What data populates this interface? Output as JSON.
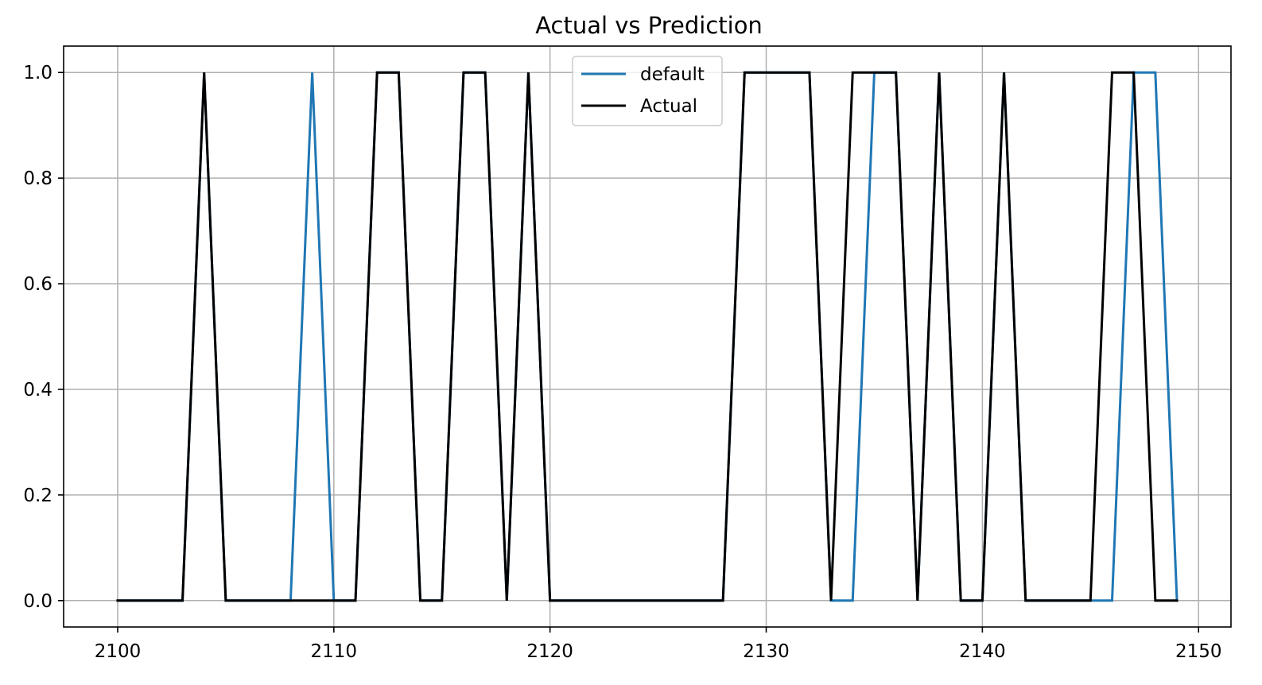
{
  "chart_data": {
    "type": "line",
    "title": "Actual vs Prediction",
    "xlabel": "",
    "ylabel": "",
    "xlim": [
      2097.5,
      2151.5
    ],
    "ylim": [
      -0.05,
      1.05
    ],
    "x_ticks": [
      2100,
      2110,
      2120,
      2130,
      2140,
      2150
    ],
    "x_tick_labels": [
      "2100",
      "2110",
      "2120",
      "2130",
      "2140",
      "2150"
    ],
    "y_ticks": [
      0.0,
      0.2,
      0.4,
      0.6,
      0.8,
      1.0
    ],
    "y_tick_labels": [
      "0.0",
      "0.2",
      "0.4",
      "0.6",
      "0.8",
      "1.0"
    ],
    "grid": true,
    "legend_position": "top-center",
    "x": [
      2100,
      2101,
      2102,
      2103,
      2104,
      2105,
      2106,
      2107,
      2108,
      2109,
      2110,
      2111,
      2112,
      2113,
      2114,
      2115,
      2116,
      2117,
      2118,
      2119,
      2120,
      2121,
      2122,
      2123,
      2124,
      2125,
      2126,
      2127,
      2128,
      2129,
      2130,
      2131,
      2132,
      2133,
      2134,
      2135,
      2136,
      2137,
      2138,
      2139,
      2140,
      2141,
      2142,
      2143,
      2144,
      2145,
      2146,
      2147,
      2148,
      2149
    ],
    "series": [
      {
        "name": "default",
        "color": "#1f77b4",
        "values": [
          0,
          0,
          0,
          0,
          1,
          0,
          0,
          0,
          0,
          1,
          0,
          0,
          1,
          1,
          0,
          0,
          1,
          1,
          0,
          1,
          0,
          0,
          0,
          0,
          0,
          0,
          0,
          0,
          0,
          1,
          1,
          1,
          1,
          0,
          0,
          1,
          1,
          0,
          1,
          0,
          0,
          1,
          0,
          0,
          0,
          0,
          0,
          1,
          1,
          0
        ]
      },
      {
        "name": "Actual",
        "color": "#000000",
        "values": [
          0,
          0,
          0,
          0,
          1,
          0,
          0,
          0,
          0,
          0,
          0,
          0,
          1,
          1,
          0,
          0,
          1,
          1,
          0,
          1,
          0,
          0,
          0,
          0,
          0,
          0,
          0,
          0,
          0,
          1,
          1,
          1,
          1,
          0,
          1,
          1,
          1,
          0,
          1,
          0,
          0,
          1,
          0,
          0,
          0,
          0,
          1,
          1,
          0,
          0
        ]
      }
    ]
  }
}
